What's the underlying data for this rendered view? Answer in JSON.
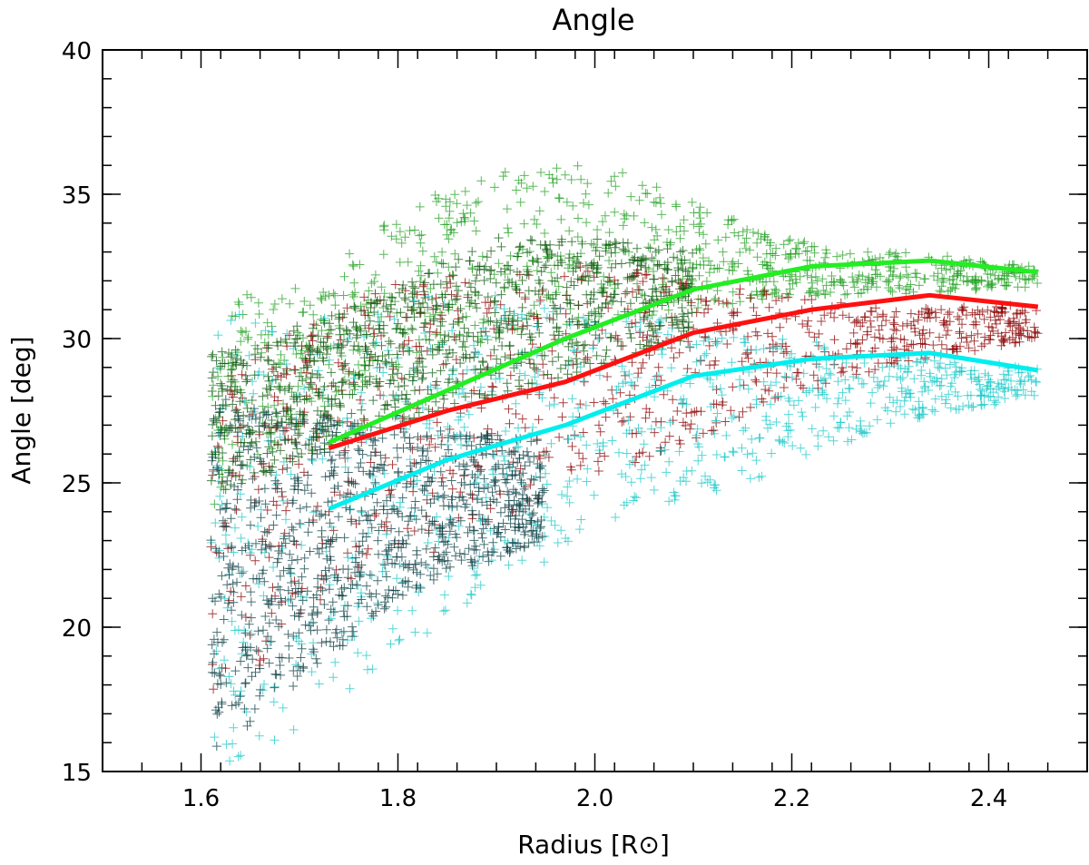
{
  "chart_data": {
    "type": "scatter",
    "title": "Angle",
    "xlabel": "Radius [R⊙]",
    "ylabel": "Angle [deg]",
    "xlim": [
      1.5,
      2.5
    ],
    "ylim": [
      15,
      40
    ],
    "xticks": [
      1.6,
      1.8,
      2.0,
      2.2,
      2.4
    ],
    "xtick_labels": [
      "1.6",
      "1.8",
      "2.0",
      "2.2",
      "2.4"
    ],
    "yticks": [
      15,
      20,
      25,
      30,
      35,
      40
    ],
    "ytick_labels": [
      "15",
      "20",
      "25",
      "30",
      "35",
      "40"
    ],
    "grid": false,
    "legend": "none",
    "colors": {
      "green_points": "#22a022",
      "dark_green_points": "#0c5a0c",
      "red_points": "#8b0000",
      "cyan_points": "#1cc8c8",
      "dark_teal_points": "#0b3f44",
      "green_line": "#22ee22",
      "red_line": "#ff1010",
      "cyan_line": "#00eeee"
    },
    "point_clouds": [
      {
        "color_key": "green_points",
        "x_range": [
          1.61,
          2.45
        ],
        "upper": [
          [
            1.61,
            32.4
          ],
          [
            1.65,
            31.5
          ],
          [
            1.72,
            32.0
          ],
          [
            1.8,
            34.5
          ],
          [
            1.9,
            35.8
          ],
          [
            1.97,
            36.3
          ],
          [
            2.05,
            35.6
          ],
          [
            2.15,
            34.0
          ],
          [
            2.25,
            33.0
          ],
          [
            2.32,
            33.0
          ],
          [
            2.45,
            32.5
          ]
        ],
        "lower": [
          [
            1.61,
            24.0
          ],
          [
            1.7,
            27.0
          ],
          [
            1.8,
            29.0
          ],
          [
            1.9,
            30.0
          ],
          [
            2.0,
            30.5
          ],
          [
            2.1,
            31.0
          ],
          [
            2.2,
            31.5
          ],
          [
            2.3,
            31.5
          ],
          [
            2.45,
            31.8
          ]
        ]
      },
      {
        "color_key": "red_points",
        "x_range": [
          1.61,
          2.45
        ],
        "upper": [
          [
            1.61,
            29.5
          ],
          [
            1.7,
            30.5
          ],
          [
            1.8,
            32.0
          ],
          [
            1.9,
            32.5
          ],
          [
            2.0,
            32.5
          ],
          [
            2.1,
            32.0
          ],
          [
            2.2,
            31.5
          ],
          [
            2.3,
            31.0
          ],
          [
            2.45,
            31.2
          ]
        ],
        "lower": [
          [
            1.61,
            17.0
          ],
          [
            1.7,
            20.0
          ],
          [
            1.8,
            22.0
          ],
          [
            1.9,
            23.5
          ],
          [
            2.0,
            25.0
          ],
          [
            2.1,
            26.5
          ],
          [
            2.2,
            28.0
          ],
          [
            2.3,
            29.0
          ],
          [
            2.45,
            30.0
          ]
        ]
      },
      {
        "color_key": "cyan_points",
        "x_range": [
          1.61,
          2.45
        ],
        "upper": [
          [
            1.61,
            31.0
          ],
          [
            1.7,
            30.5
          ],
          [
            1.8,
            31.5
          ],
          [
            1.9,
            31.5
          ],
          [
            2.0,
            31.0
          ],
          [
            2.1,
            30.5
          ],
          [
            2.2,
            30.0
          ],
          [
            2.3,
            29.5
          ],
          [
            2.45,
            29.0
          ]
        ],
        "lower": [
          [
            1.61,
            15.0
          ],
          [
            1.7,
            16.5
          ],
          [
            1.8,
            19.0
          ],
          [
            1.9,
            21.5
          ],
          [
            2.0,
            23.0
          ],
          [
            2.1,
            24.5
          ],
          [
            2.2,
            25.5
          ],
          [
            2.3,
            27.0
          ],
          [
            2.45,
            28.0
          ]
        ]
      },
      {
        "color_key": "dark_teal_points",
        "x_range": [
          1.61,
          1.95
        ],
        "upper": [
          [
            1.61,
            28.0
          ],
          [
            1.7,
            27.5
          ],
          [
            1.8,
            27.0
          ],
          [
            1.95,
            26.5
          ]
        ],
        "lower": [
          [
            1.61,
            15.5
          ],
          [
            1.7,
            18.0
          ],
          [
            1.8,
            21.0
          ],
          [
            1.95,
            23.0
          ]
        ]
      },
      {
        "color_key": "dark_green_points",
        "x_range": [
          1.61,
          2.1
        ],
        "upper": [
          [
            1.61,
            29.5
          ],
          [
            1.75,
            31.0
          ],
          [
            1.9,
            33.5
          ],
          [
            2.0,
            33.5
          ],
          [
            2.1,
            33.0
          ]
        ],
        "lower": [
          [
            1.61,
            24.5
          ],
          [
            1.75,
            26.5
          ],
          [
            1.9,
            28.0
          ],
          [
            2.0,
            29.0
          ],
          [
            2.1,
            30.0
          ]
        ]
      }
    ],
    "series": [
      {
        "color_key": "green_line",
        "x": [
          1.73,
          1.85,
          1.97,
          2.1,
          2.22,
          2.34,
          2.45
        ],
        "y": [
          26.4,
          28.2,
          30.0,
          31.7,
          32.5,
          32.7,
          32.3
        ]
      },
      {
        "color_key": "red_line",
        "x": [
          1.73,
          1.85,
          1.97,
          2.1,
          2.22,
          2.34,
          2.45
        ],
        "y": [
          26.2,
          27.5,
          28.5,
          30.2,
          31.0,
          31.5,
          31.1
        ]
      },
      {
        "color_key": "cyan_line",
        "x": [
          1.73,
          1.85,
          1.97,
          2.1,
          2.22,
          2.34,
          2.45
        ],
        "y": [
          24.1,
          25.8,
          27.0,
          28.7,
          29.3,
          29.5,
          28.9
        ]
      }
    ]
  }
}
